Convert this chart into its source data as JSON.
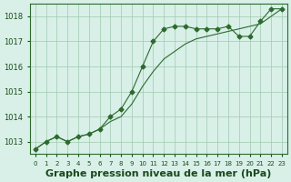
{
  "title": "Graphe pression niveau de la mer (hPa)",
  "x_labels": [
    0,
    1,
    2,
    3,
    4,
    5,
    6,
    7,
    8,
    9,
    10,
    11,
    12,
    13,
    14,
    15,
    16,
    17,
    18,
    19,
    20,
    21,
    22,
    23
  ],
  "line1_x": [
    0,
    1,
    2,
    3,
    4,
    5,
    6,
    7,
    8,
    9,
    10,
    11,
    12,
    13,
    14,
    15,
    16,
    17,
    18,
    19,
    20,
    21,
    22,
    23
  ],
  "line1_y": [
    1012.7,
    1013.0,
    1013.2,
    1013.0,
    1013.2,
    1013.3,
    1013.5,
    1014.0,
    1014.3,
    1015.0,
    1016.0,
    1017.0,
    1017.5,
    1017.6,
    1017.6,
    1017.5,
    1017.5,
    1017.5,
    1017.6,
    1017.2,
    1017.2,
    1017.8,
    1018.3,
    1018.3
  ],
  "line2_x": [
    0,
    1,
    2,
    3,
    4,
    5,
    6,
    7,
    8,
    9,
    10,
    11,
    12,
    13,
    14,
    15,
    16,
    17,
    18,
    19,
    20,
    21,
    22,
    23
  ],
  "line2_y": [
    1012.7,
    1013.0,
    1013.2,
    1013.0,
    1013.2,
    1013.3,
    1013.5,
    1013.8,
    1014.0,
    1014.5,
    1015.2,
    1015.8,
    1016.3,
    1016.6,
    1016.9,
    1017.1,
    1017.2,
    1017.3,
    1017.4,
    1017.5,
    1017.6,
    1017.7,
    1018.0,
    1018.3
  ],
  "line_color": "#2d6a2d",
  "bg_color": "#d8f0e8",
  "grid_color": "#a0c8b0",
  "text_color": "#1a4a1a",
  "ylim_min": 1012.5,
  "ylim_max": 1018.5,
  "yticks": [
    1013,
    1014,
    1015,
    1016,
    1017,
    1018
  ],
  "marker": "D",
  "marker_size": 2.5,
  "title_fontsize": 8,
  "tick_fontsize": 6
}
